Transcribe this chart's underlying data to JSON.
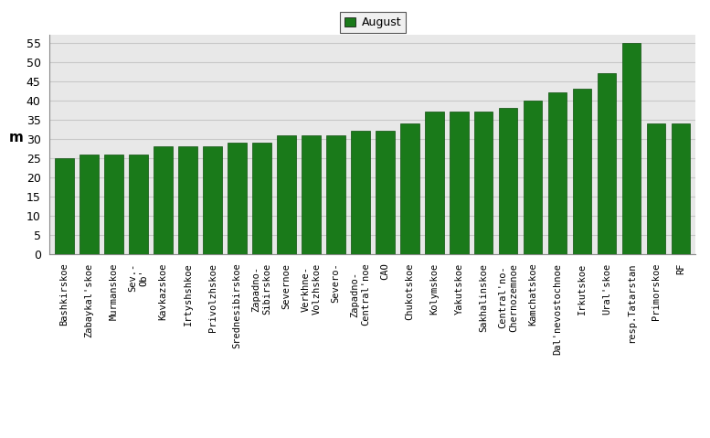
{
  "categories": [
    "Bashkirskoe",
    "Zabaykal'skoe",
    "Murmanskoe",
    "Sev.-\nOb'",
    "Kavkazskoe",
    "Irtyshshkoe",
    "Privolzhskoe",
    "Srednesibirskoe",
    "Zapadno-\nSibirskoe",
    "Severnoe",
    "Verkhne-\nVolzhskoe",
    "Severo-",
    "Zapadno-\nCentral'noe",
    "CAO",
    "Chukotskoe",
    "Kolymskoe",
    "Yakutskoe",
    "Sakhalinskoe",
    "Central'no-\nChernozemnoe",
    "Kamchatskoe",
    "Dal'nevostochnoe",
    "Irkutskoe",
    "Ural'skoe",
    "resp.Tatarstan",
    "Primorskoe",
    "RF"
  ],
  "values": [
    25,
    26,
    26,
    26,
    28,
    28,
    28,
    29,
    29,
    31,
    31,
    31,
    32,
    32,
    34,
    37,
    37,
    37,
    38,
    40,
    42,
    43,
    47,
    55,
    34,
    34
  ],
  "bar_color": "#1a7a1a",
  "bar_edge_color": "#0d4f0d",
  "ylabel": "m",
  "ylim": [
    0,
    57
  ],
  "yticks": [
    0,
    5,
    10,
    15,
    20,
    25,
    30,
    35,
    40,
    45,
    50,
    55
  ],
  "legend_label": "August",
  "legend_color": "#1a7a1a",
  "bg_color": "#e8e8e8",
  "fig_bg_color": "#ffffff",
  "grid_color": "#c8c8c8"
}
